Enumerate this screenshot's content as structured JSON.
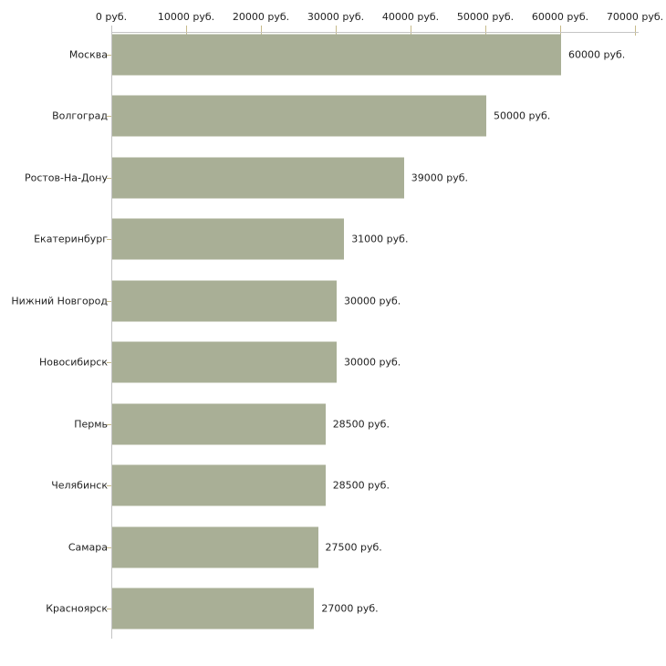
{
  "chart_data": {
    "type": "bar",
    "orientation": "horizontal",
    "categories": [
      "Москва",
      "Волгоград",
      "Ростов-На-Дону",
      "Екатеринбург",
      "Нижний Новгород",
      "Новосибирск",
      "Пермь",
      "Челябинск",
      "Самара",
      "Красноярск"
    ],
    "values": [
      60000,
      50000,
      39000,
      31000,
      30000,
      30000,
      28500,
      28500,
      27500,
      27000
    ],
    "value_labels": [
      "60000 руб.",
      "50000 руб.",
      "39000 руб.",
      "31000 руб.",
      "30000 руб.",
      "30000 руб.",
      "28500 руб.",
      "28500 руб.",
      "27500 руб.",
      "27000 руб."
    ],
    "x_ticks": [
      0,
      10000,
      20000,
      30000,
      40000,
      50000,
      60000,
      70000
    ],
    "x_tick_labels": [
      "0 руб.",
      "10000 руб.",
      "20000 руб.",
      "30000 руб.",
      "40000 руб.",
      "50000 руб.",
      "60000 руб.",
      "70000 руб."
    ],
    "xlim": [
      0,
      70000
    ],
    "unit": "руб.",
    "title": "",
    "xlabel": "",
    "ylabel": "",
    "legend": "none",
    "grid": "off",
    "bar_color": "#a9af96",
    "axis_line_color": "#c4c4c4",
    "tick_color": "#c8bb8b",
    "text_color": "#222222",
    "background": "#ffffff"
  }
}
